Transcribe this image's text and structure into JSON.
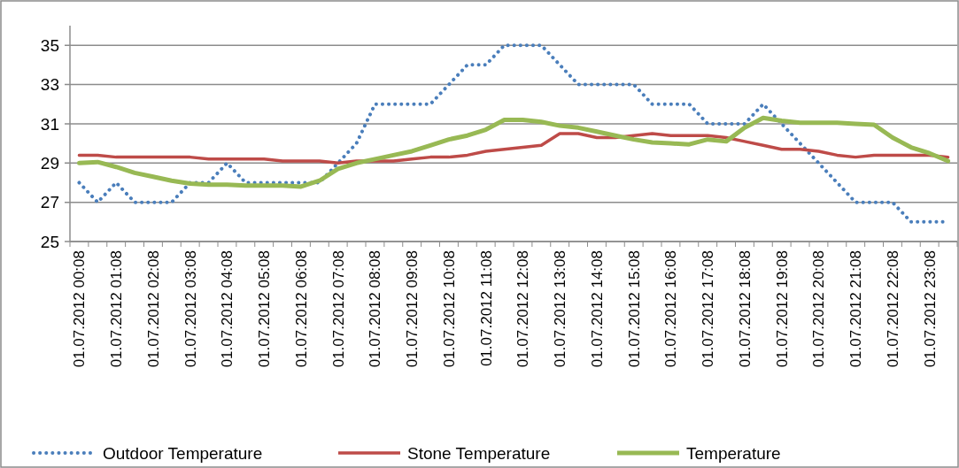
{
  "chart_data": {
    "type": "line",
    "categories": [
      "01.07.2012 00:08",
      null,
      "01.07.2012 01:08",
      null,
      "01.07.2012 02:08",
      null,
      "01.07.2012 03:08",
      null,
      "01.07.2012 04:08",
      null,
      "01.07.2012 05:08",
      null,
      "01.07.2012 06:08",
      null,
      "01.07.2012 07:08",
      null,
      "01.07.2012 08:08",
      null,
      "01.07.2012 09:08",
      null,
      "01.07.2012 10:08",
      null,
      "01.07.2012 11:08",
      null,
      "01.07.2012 12:08",
      null,
      "01.07.2012 13:08",
      null,
      "01.07.2012 14:08",
      null,
      "01.07.2012 15:08",
      null,
      "01.07.2012 16:08",
      null,
      "01.07.2012 17:08",
      null,
      "01.07.2012 18:08",
      null,
      "01.07.2012 19:08",
      null,
      "01.07.2012 20:08",
      null,
      "01.07.2012 21:08",
      null,
      "01.07.2012 22:08",
      null,
      "01.07.2012 23:08",
      null
    ],
    "series": [
      {
        "name": "Outdoor Temperature",
        "color": "#4a7ebb",
        "line_style": "dotted",
        "values": [
          28,
          27,
          28,
          27,
          27,
          27,
          28,
          28,
          29,
          28,
          28,
          28,
          28,
          28,
          29,
          30,
          32,
          32,
          32,
          32,
          33,
          34,
          34,
          35,
          35,
          35,
          34,
          33,
          33,
          33,
          33,
          32,
          32,
          32,
          31,
          31,
          31,
          32,
          31,
          30,
          29,
          28,
          27,
          27,
          27,
          26,
          26,
          26
        ]
      },
      {
        "name": "Stone Temperature",
        "color": "#be4b48",
        "line_style": "solid",
        "values": [
          29.4,
          29.4,
          29.3,
          29.3,
          29.3,
          29.3,
          29.3,
          29.2,
          29.2,
          29.2,
          29.2,
          29.1,
          29.1,
          29.1,
          29.0,
          29.1,
          29.1,
          29.1,
          29.2,
          29.3,
          29.3,
          29.4,
          29.6,
          29.7,
          29.8,
          29.9,
          30.5,
          30.5,
          30.3,
          30.3,
          30.4,
          30.5,
          30.4,
          30.4,
          30.4,
          30.3,
          30.1,
          29.9,
          29.7,
          29.7,
          29.6,
          29.4,
          29.3,
          29.4,
          29.4,
          29.4,
          29.4,
          29.3
        ]
      },
      {
        "name": "Temperature",
        "color": "#98b954",
        "line_style": "solid",
        "values": [
          29.0,
          29.05,
          28.8,
          28.5,
          28.3,
          28.1,
          27.95,
          27.9,
          27.9,
          27.85,
          27.85,
          27.85,
          27.8,
          28.1,
          28.7,
          29.0,
          29.2,
          29.4,
          29.6,
          29.9,
          30.2,
          30.4,
          30.7,
          31.2,
          31.2,
          31.1,
          30.9,
          30.8,
          30.6,
          30.4,
          30.2,
          30.05,
          30.0,
          29.95,
          30.2,
          30.1,
          30.8,
          31.3,
          31.15,
          31.05,
          31.05,
          31.05,
          31.0,
          30.95,
          30.3,
          29.8,
          29.5,
          29.1
        ]
      }
    ],
    "ylim": [
      25,
      36
    ],
    "yticks": [
      25,
      27,
      29,
      31,
      33,
      35
    ],
    "grid": "y",
    "legend": "bottom",
    "marker": "none"
  }
}
